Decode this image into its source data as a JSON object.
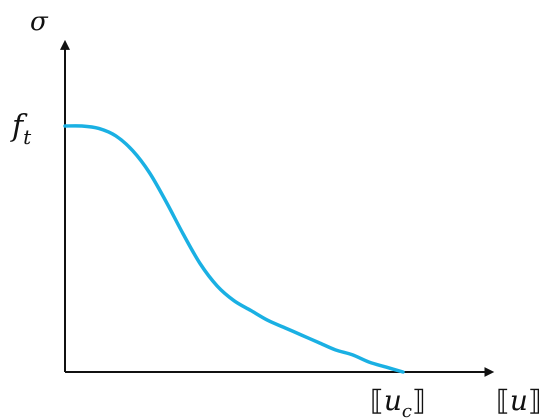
{
  "chart_data": {
    "type": "line",
    "title": "",
    "xlabel": "",
    "ylabel": "",
    "x_axis_label": {
      "open_bracket": "⟦",
      "symbol": "u",
      "close_bracket": "⟧"
    },
    "y_axis_label": "σ",
    "y_tick_label": {
      "base": "f",
      "sub": "t"
    },
    "x_tick_label": {
      "open_bracket": "⟦",
      "symbol": "u",
      "sub": "c",
      "close_bracket": "⟧"
    },
    "xlim": [
      0,
      1.27
    ],
    "ylim": [
      0,
      1.35
    ],
    "grid": false,
    "line_color": "#1ab0e3",
    "axis_color": "#111111",
    "series": [
      {
        "x": [
          0.0,
          0.05,
          0.1,
          0.15,
          0.2,
          0.25,
          0.3,
          0.35,
          0.4,
          0.45,
          0.5,
          0.55,
          0.6,
          0.65,
          0.7,
          0.75,
          0.8,
          0.85,
          0.9,
          0.95,
          1.0
        ],
        "y": [
          1.0,
          1.0,
          0.99,
          0.96,
          0.9,
          0.81,
          0.69,
          0.56,
          0.44,
          0.35,
          0.29,
          0.25,
          0.21,
          0.18,
          0.15,
          0.12,
          0.09,
          0.07,
          0.04,
          0.02,
          0.0
        ]
      }
    ]
  }
}
